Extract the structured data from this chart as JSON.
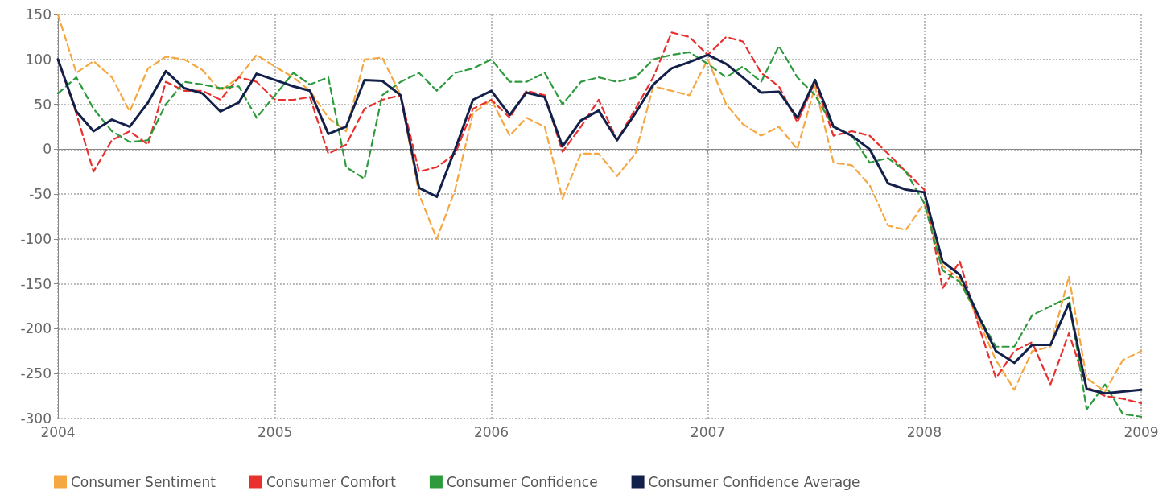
{
  "chart_data": {
    "type": "line",
    "x": [
      "2004-01",
      "2004-02",
      "2004-03",
      "2004-04",
      "2004-05",
      "2004-06",
      "2004-07",
      "2004-08",
      "2004-09",
      "2004-10",
      "2004-11",
      "2004-12",
      "2005-01",
      "2005-02",
      "2005-03",
      "2005-04",
      "2005-05",
      "2005-06",
      "2005-07",
      "2005-08",
      "2005-09",
      "2005-10",
      "2005-11",
      "2005-12",
      "2006-01",
      "2006-02",
      "2006-03",
      "2006-04",
      "2006-05",
      "2006-06",
      "2006-07",
      "2006-08",
      "2006-09",
      "2006-10",
      "2006-11",
      "2006-12",
      "2007-01",
      "2007-02",
      "2007-03",
      "2007-04",
      "2007-05",
      "2007-06",
      "2007-07",
      "2007-08",
      "2007-09",
      "2007-10",
      "2007-11",
      "2007-12",
      "2008-01",
      "2008-02",
      "2008-03",
      "2008-04",
      "2008-05",
      "2008-06",
      "2008-07",
      "2008-08",
      "2008-09",
      "2008-10",
      "2008-11",
      "2008-12",
      "2009-01"
    ],
    "series": [
      {
        "name": "Consumer Sentiment",
        "color": "#f5a742",
        "line_style": "dashed",
        "values": [
          150,
          85,
          98,
          80,
          42,
          90,
          103,
          100,
          88,
          65,
          80,
          105,
          92,
          80,
          65,
          35,
          20,
          100,
          102,
          60,
          -50,
          -100,
          -45,
          40,
          55,
          15,
          35,
          25,
          -55,
          -5,
          -5,
          -30,
          -5,
          70,
          65,
          60,
          100,
          50,
          28,
          15,
          25,
          0,
          70,
          -15,
          -18,
          -40,
          -85,
          -90,
          -60,
          -130,
          -145,
          -190,
          -235,
          -268,
          -225,
          -220,
          -142,
          -255,
          -270,
          -235,
          -225
        ]
      },
      {
        "name": "Consumer Comfort",
        "color": "#e8302e",
        "line_style": "dashed",
        "values": [
          100,
          40,
          -25,
          10,
          20,
          5,
          75,
          65,
          65,
          55,
          80,
          75,
          55,
          55,
          58,
          -5,
          5,
          45,
          55,
          60,
          -25,
          -20,
          -5,
          45,
          55,
          35,
          65,
          60,
          -3,
          25,
          55,
          10,
          45,
          80,
          130,
          125,
          105,
          125,
          120,
          85,
          70,
          30,
          75,
          15,
          20,
          15,
          -5,
          -25,
          -45,
          -155,
          -125,
          -195,
          -255,
          -225,
          -215,
          -262,
          -205,
          -265,
          -275,
          -278,
          -283
        ]
      },
      {
        "name": "Consumer Confidence",
        "color": "#2e9a3e",
        "line_style": "dashed",
        "values": [
          62,
          80,
          45,
          20,
          8,
          10,
          50,
          75,
          72,
          68,
          70,
          35,
          60,
          85,
          72,
          80,
          -20,
          -33,
          60,
          75,
          85,
          65,
          85,
          90,
          100,
          75,
          75,
          85,
          50,
          75,
          80,
          75,
          80,
          100,
          105,
          108,
          95,
          80,
          92,
          75,
          115,
          80,
          60,
          25,
          15,
          -15,
          -10,
          -25,
          -60,
          -135,
          -148,
          -185,
          -220,
          -220,
          -185,
          -175,
          -165,
          -290,
          -262,
          -295,
          -298
        ]
      },
      {
        "name": "Consumer Confidence Average",
        "color": "#13214a",
        "line_style": "solid",
        "values": [
          100,
          42,
          20,
          33,
          25,
          52,
          87,
          68,
          62,
          42,
          52,
          84,
          77,
          70,
          65,
          17,
          25,
          77,
          76,
          60,
          -43,
          -53,
          0,
          55,
          65,
          38,
          63,
          58,
          3,
          32,
          43,
          10,
          40,
          72,
          90,
          97,
          105,
          95,
          80,
          63,
          64,
          35,
          77,
          25,
          15,
          0,
          -38,
          -45,
          -48,
          -125,
          -140,
          -185,
          -225,
          -238,
          -218,
          -218,
          -172,
          -267,
          -272,
          -270,
          -268
        ]
      }
    ],
    "xlim": [
      "2004-01",
      "2009-01"
    ],
    "xticks": [
      "2004",
      "2005",
      "2006",
      "2007",
      "2008",
      "2009"
    ],
    "ylim": [
      -300,
      150
    ],
    "yticks": [
      -300,
      -250,
      -200,
      -150,
      -100,
      -50,
      0,
      50,
      100,
      150
    ],
    "grid": true,
    "legend": "bottom left",
    "marker": "none"
  }
}
